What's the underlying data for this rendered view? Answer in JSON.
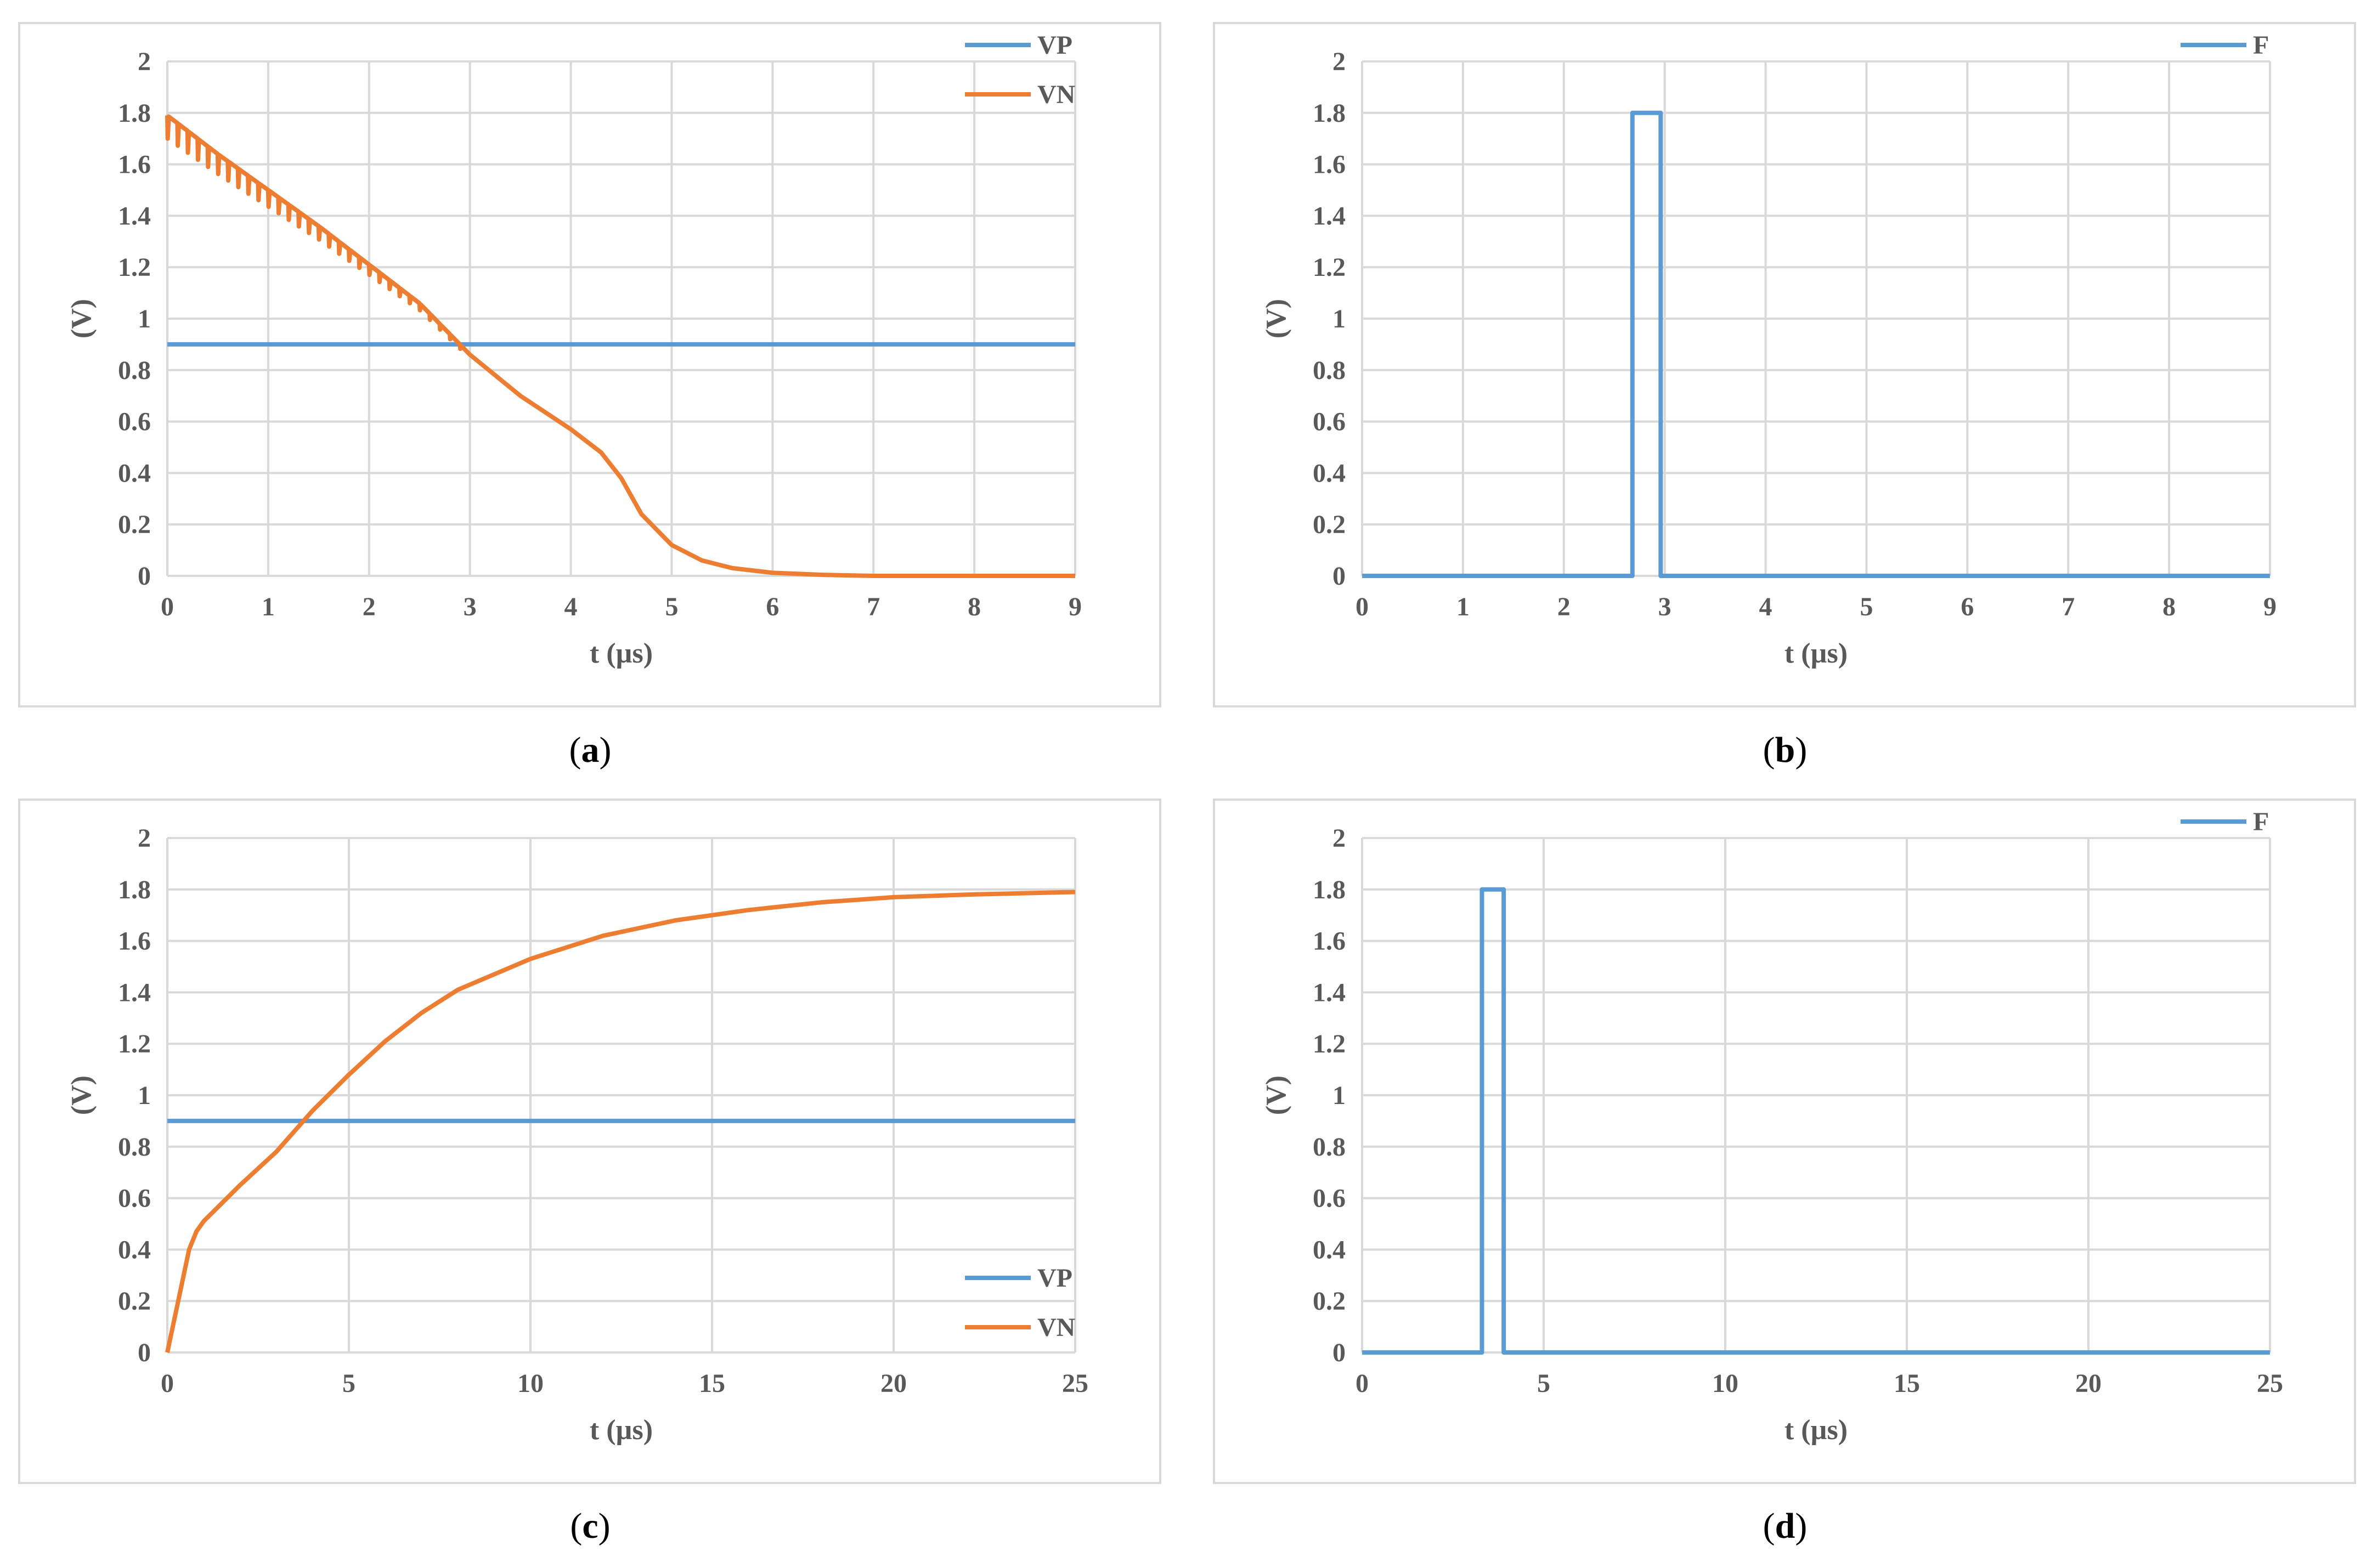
{
  "colors": {
    "vp": "#5b9bd5",
    "vn": "#ed7d31",
    "grid": "#d9d9d9",
    "text": "#595959"
  },
  "captions": {
    "a": {
      "open": "(",
      "letter": "a",
      "close": ")"
    },
    "b": {
      "open": "(",
      "letter": "b",
      "close": ")"
    },
    "c": {
      "open": "(",
      "letter": "c",
      "close": ")"
    },
    "d": {
      "open": "(",
      "letter": "d",
      "close": ")"
    }
  },
  "chart_data": [
    {
      "id": "a",
      "type": "line",
      "xlabel": "t (µs)",
      "ylabel": "(V)",
      "xlim": [
        0,
        9
      ],
      "ylim": [
        0,
        2
      ],
      "xticks": [
        0,
        1,
        2,
        3,
        4,
        5,
        6,
        7,
        8,
        9
      ],
      "yticks": [
        0,
        0.2,
        0.4,
        0.6,
        0.8,
        1,
        1.2,
        1.4,
        1.6,
        1.8,
        2
      ],
      "ytick_labels": [
        "0",
        "0.2",
        "0.4",
        "0.6",
        "0.8",
        "1",
        "1.2",
        "1.4",
        "1.6",
        "1.8",
        "2"
      ],
      "grid": true,
      "legend": "top-right",
      "series": [
        {
          "name": "VP",
          "color": "#5b9bd5",
          "x": [
            0,
            9
          ],
          "y": [
            0.9,
            0.9
          ]
        },
        {
          "name": "VN",
          "color": "#ed7d31",
          "x": [
            0,
            0.5,
            1,
            1.5,
            2,
            2.5,
            3,
            3.5,
            4,
            4.3,
            4.5,
            4.7,
            5,
            5.3,
            5.6,
            6,
            6.5,
            7,
            8,
            9
          ],
          "y": [
            1.79,
            1.64,
            1.5,
            1.36,
            1.21,
            1.06,
            0.86,
            0.7,
            0.57,
            0.48,
            0.38,
            0.24,
            0.12,
            0.06,
            0.03,
            0.012,
            0.004,
            0,
            0,
            0
          ],
          "ripple": {
            "x_end": 3.0,
            "period": 0.1,
            "depth": 0.09
          }
        }
      ]
    },
    {
      "id": "b",
      "type": "line",
      "xlabel": "t (µs)",
      "ylabel": "(V)",
      "xlim": [
        0,
        9
      ],
      "ylim": [
        0,
        2
      ],
      "xticks": [
        0,
        1,
        2,
        3,
        4,
        5,
        6,
        7,
        8,
        9
      ],
      "yticks": [
        0,
        0.2,
        0.4,
        0.6,
        0.8,
        1,
        1.2,
        1.4,
        1.6,
        1.8,
        2
      ],
      "ytick_labels": [
        "0",
        "0.2",
        "0.4",
        "0.6",
        "0.8",
        "1",
        "1.2",
        "1.4",
        "1.6",
        "1.8",
        "2"
      ],
      "grid": true,
      "legend": "top-right",
      "series": [
        {
          "name": "F",
          "color": "#5b9bd5",
          "x": [
            0,
            2.68,
            2.68,
            2.96,
            2.96,
            9
          ],
          "y": [
            0,
            0,
            1.8,
            1.8,
            0,
            0
          ]
        }
      ]
    },
    {
      "id": "c",
      "type": "line",
      "xlabel": "t (µs)",
      "ylabel": "(V)",
      "xlim": [
        0,
        25
      ],
      "ylim": [
        0,
        2
      ],
      "xticks": [
        0,
        5,
        10,
        15,
        20,
        25
      ],
      "yticks": [
        0,
        0.2,
        0.4,
        0.6,
        0.8,
        1,
        1.2,
        1.4,
        1.6,
        1.8,
        2
      ],
      "ytick_labels": [
        "0",
        "0.2",
        "0.4",
        "0.6",
        "0.8",
        "1",
        "1.2",
        "1.4",
        "1.6",
        "1.8",
        "2"
      ],
      "grid": true,
      "legend": "bottom-right",
      "series": [
        {
          "name": "VP",
          "color": "#5b9bd5",
          "x": [
            0,
            25
          ],
          "y": [
            0.9,
            0.9
          ]
        },
        {
          "name": "VN",
          "color": "#ed7d31",
          "x": [
            0,
            0.3,
            0.6,
            0.8,
            1,
            1.5,
            2,
            3,
            4,
            5,
            6,
            7,
            8,
            10,
            12,
            14,
            16,
            18,
            20,
            22,
            25
          ],
          "y": [
            0,
            0.2,
            0.4,
            0.47,
            0.51,
            0.58,
            0.65,
            0.78,
            0.94,
            1.08,
            1.21,
            1.32,
            1.41,
            1.53,
            1.62,
            1.68,
            1.72,
            1.75,
            1.77,
            1.78,
            1.79
          ]
        }
      ]
    },
    {
      "id": "d",
      "type": "line",
      "xlabel": "t (µs)",
      "ylabel": "(V)",
      "xlim": [
        0,
        25
      ],
      "ylim": [
        0,
        2
      ],
      "xticks": [
        0,
        5,
        10,
        15,
        20,
        25
      ],
      "yticks": [
        0,
        0.2,
        0.4,
        0.6,
        0.8,
        1,
        1.2,
        1.4,
        1.6,
        1.8,
        2
      ],
      "ytick_labels": [
        "0",
        "0.2",
        "0.4",
        "0.6",
        "0.8",
        "1",
        "1.2",
        "1.4",
        "1.6",
        "1.8",
        "2"
      ],
      "grid": true,
      "legend": "top-right",
      "series": [
        {
          "name": "F",
          "color": "#5b9bd5",
          "x": [
            0,
            3.3,
            3.3,
            3.9,
            3.9,
            25
          ],
          "y": [
            0,
            0,
            1.8,
            1.8,
            0,
            0
          ]
        }
      ]
    }
  ]
}
